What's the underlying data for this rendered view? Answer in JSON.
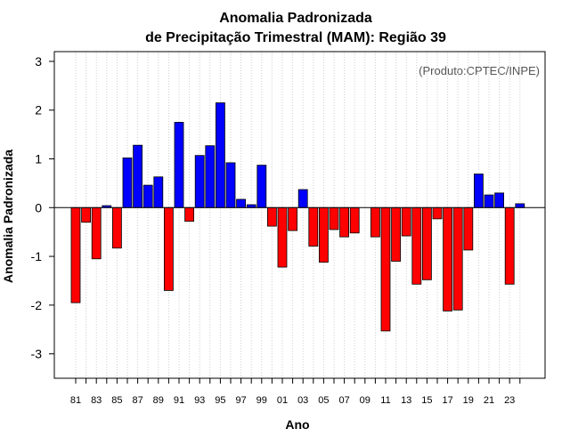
{
  "chart_data": {
    "type": "bar",
    "title_line1": "Anomalia Padronizada",
    "title_line2": "de Precipitação Trimestral (MAM): Região 39",
    "xlabel": "Ano",
    "ylabel": "Anomalia Padronizada",
    "credit": "(Produto:CPTEC/INPE)",
    "ylim": [
      -3.5,
      3.2
    ],
    "yticks": [
      "-3",
      "-2",
      "-1",
      "0",
      "1",
      "2",
      "3"
    ],
    "categories": [
      "81",
      "82",
      "83",
      "84",
      "85",
      "86",
      "87",
      "88",
      "89",
      "90",
      "91",
      "92",
      "93",
      "94",
      "95",
      "96",
      "97",
      "98",
      "99",
      "00",
      "01",
      "02",
      "03",
      "04",
      "05",
      "06",
      "07",
      "08",
      "09",
      "10",
      "11",
      "12",
      "13",
      "14",
      "15",
      "16",
      "17",
      "18",
      "19",
      "20",
      "21",
      "22",
      "23",
      "24"
    ],
    "xtick_labels": [
      "81",
      "83",
      "85",
      "87",
      "89",
      "91",
      "93",
      "95",
      "97",
      "99",
      "01",
      "03",
      "05",
      "07",
      "09",
      "11",
      "13",
      "15",
      "17",
      "19",
      "21",
      "23"
    ],
    "values": [
      -1.95,
      -0.3,
      -1.05,
      0.04,
      -0.83,
      1.02,
      1.28,
      0.46,
      0.63,
      -1.7,
      1.75,
      -0.28,
      1.07,
      1.27,
      2.15,
      0.92,
      0.17,
      0.06,
      0.87,
      -0.38,
      -1.22,
      -0.47,
      0.37,
      -0.79,
      -1.12,
      -0.45,
      -0.6,
      -0.52,
      0.0,
      -0.6,
      -2.53,
      -1.1,
      -0.58,
      -1.57,
      -1.48,
      -0.23,
      -2.12,
      -2.1,
      -0.87,
      0.69,
      0.26,
      0.3,
      -1.57,
      0.08
    ],
    "positive_color": "#0000ff",
    "negative_color": "#ff0000",
    "grid": true
  }
}
